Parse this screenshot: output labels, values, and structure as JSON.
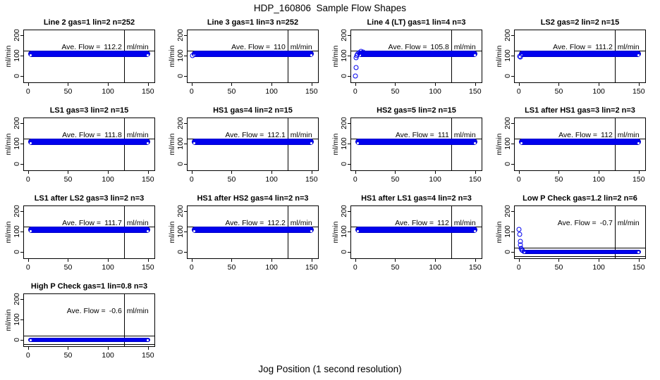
{
  "page": {
    "background": "#ffffff"
  },
  "chart_data": {
    "type": "scatter",
    "title": "HDP_160806  Sample Flow Shapes",
    "xlabel": "Jog Position (1 second resolution)",
    "ylabel": "ml/min",
    "flow_unit": "ml/min",
    "ave_flow_label": "Ave. Flow =",
    "x_ticks": [
      0,
      50,
      100,
      150
    ],
    "y_ticks": [
      0,
      100,
      200
    ],
    "xlim": [
      -6,
      159
    ],
    "ylim": [
      -35,
      228
    ],
    "grid": false,
    "legend": "none",
    "marker_color": "#0101EE",
    "marker_style": "open-circle",
    "vline_x": 120,
    "layout": "4 columns x 4 rows, 13 panels",
    "subplots": [
      {
        "title": "Line 2 gas=1 lin=2 n=252",
        "ave_flow": "112.2",
        "band": {
          "x_start": 0,
          "x_end": 153,
          "y_center": 110,
          "y_spread": 15
        },
        "ref_lines_y": [
          124
        ],
        "extra_points": []
      },
      {
        "title": "Line 3 gas=1 lin=3 n=252",
        "ave_flow": "110",
        "band": {
          "x_start": 0,
          "x_end": 153,
          "y_center": 110,
          "y_spread": 15
        },
        "ref_lines_y": [
          124
        ],
        "extra_points": [
          [
            0.8,
            99
          ]
        ]
      },
      {
        "title": "Line 4 (LT) gas=1 lin=4 n=3",
        "ave_flow": "105.8",
        "band": {
          "x_start": 2.5,
          "x_end": 153,
          "y_center": 109,
          "y_spread": 16
        },
        "ref_lines_y": [
          124
        ],
        "extra_points": [
          [
            0.5,
            -2
          ],
          [
            0.8,
            40
          ],
          [
            1.2,
            88
          ],
          [
            2,
            99
          ],
          [
            3,
            106
          ],
          [
            5,
            115
          ],
          [
            7,
            120
          ],
          [
            10,
            118
          ]
        ]
      },
      {
        "title": "LS2 gas=2 lin=2 n=15",
        "ave_flow": "111.2",
        "band": {
          "x_start": 0,
          "x_end": 153,
          "y_center": 110,
          "y_spread": 15
        },
        "ref_lines_y": [
          124
        ],
        "extra_points": [
          [
            0.7,
            97
          ],
          [
            1.6,
            94
          ]
        ]
      },
      {
        "title": "LS1 gas=3 lin=2 n=15",
        "ave_flow": "111.8",
        "band": {
          "x_start": 0,
          "x_end": 153,
          "y_center": 110,
          "y_spread": 15
        },
        "ref_lines_y": [
          124
        ],
        "extra_points": []
      },
      {
        "title": "HS1 gas=4 lin=2 n=15",
        "ave_flow": "112.1",
        "band": {
          "x_start": 0,
          "x_end": 153,
          "y_center": 110,
          "y_spread": 15
        },
        "ref_lines_y": [
          124
        ],
        "extra_points": []
      },
      {
        "title": "HS2 gas=5 lin=2 n=15",
        "ave_flow": "111",
        "band": {
          "x_start": 0,
          "x_end": 153,
          "y_center": 110,
          "y_spread": 15
        },
        "ref_lines_y": [
          124
        ],
        "extra_points": []
      },
      {
        "title": "LS1 after HS1 gas=3 lin=2 n=3",
        "ave_flow": "112",
        "band": {
          "x_start": 0,
          "x_end": 153,
          "y_center": 110,
          "y_spread": 15
        },
        "ref_lines_y": [
          124
        ],
        "extra_points": []
      },
      {
        "title": "LS1 after LS2 gas=3 lin=2 n=3",
        "ave_flow": "111.7",
        "band": {
          "x_start": 0,
          "x_end": 153,
          "y_center": 110,
          "y_spread": 15
        },
        "ref_lines_y": [
          124
        ],
        "extra_points": []
      },
      {
        "title": "HS1 after HS2 gas=4 lin=2 n=3",
        "ave_flow": "112.2",
        "band": {
          "x_start": 0,
          "x_end": 153,
          "y_center": 110,
          "y_spread": 15
        },
        "ref_lines_y": [
          124
        ],
        "extra_points": []
      },
      {
        "title": "HS1 after LS1 gas=4 lin=2 n=3",
        "ave_flow": "112",
        "band": {
          "x_start": 0,
          "x_end": 153,
          "y_center": 110,
          "y_spread": 15
        },
        "ref_lines_y": [
          124
        ],
        "extra_points": []
      },
      {
        "title": "Low P Check gas=1.2 lin=2 n=6",
        "ave_flow": "-0.7",
        "band": {
          "x_start": 4,
          "x_end": 153,
          "y_center": 0,
          "y_spread": 11
        },
        "ref_lines_y": [
          20,
          -20
        ],
        "extra_points": [
          [
            0.6,
            110
          ],
          [
            1,
            85
          ],
          [
            1.6,
            50
          ],
          [
            2.2,
            33
          ],
          [
            3,
            18
          ],
          [
            4,
            10
          ],
          [
            5,
            5
          ]
        ]
      },
      {
        "title": "High P Check gas=1 lin=0.8 n=3",
        "ave_flow": "-0.6",
        "band": {
          "x_start": 0,
          "x_end": 153,
          "y_center": 0,
          "y_spread": 11
        },
        "ref_lines_y": [
          20,
          -20
        ],
        "extra_points": []
      }
    ]
  }
}
